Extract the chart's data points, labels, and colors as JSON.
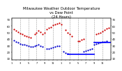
{
  "title": "Milwaukee Weather Outdoor Temperature\nvs Dew Point\n(24 Hours)",
  "title_fontsize": 3.8,
  "background_color": "#ffffff",
  "ylim": [
    8,
    72
  ],
  "xlim": [
    0,
    24
  ],
  "grid_x": [
    2,
    4,
    6,
    8,
    10,
    12,
    14,
    16,
    18,
    20,
    22
  ],
  "temp_x": [
    0.5,
    1.0,
    1.5,
    2.0,
    2.5,
    3.0,
    3.5,
    4.0,
    4.5,
    5.5,
    6.0,
    6.5,
    7.0,
    7.5,
    8.0,
    8.5,
    9.0,
    9.5,
    10.0,
    10.5,
    11.0,
    11.5,
    12.0,
    13.0,
    13.5,
    14.0,
    14.5,
    16.0,
    16.5,
    17.0,
    17.5,
    20.5,
    21.0,
    21.5,
    22.0,
    22.5,
    23.0,
    23.5
  ],
  "temp_y": [
    55,
    53,
    51,
    49,
    47,
    45,
    44,
    43,
    42,
    47,
    50,
    53,
    51,
    47,
    50,
    55,
    57,
    58,
    61,
    62,
    64,
    65,
    63,
    54,
    50,
    47,
    44,
    37,
    37,
    39,
    40,
    47,
    49,
    50,
    52,
    54,
    56,
    57
  ],
  "dew_x": [
    0.5,
    1.0,
    1.5,
    2.0,
    2.5,
    3.0,
    3.5,
    4.0,
    4.5,
    5.0,
    5.5,
    6.0,
    6.5,
    7.0,
    7.5,
    8.5,
    9.0,
    9.5,
    10.0,
    10.5,
    11.0,
    11.5,
    12.5,
    13.0,
    13.5,
    17.5,
    18.0,
    18.5,
    19.0,
    19.5,
    20.0,
    20.5,
    21.0,
    21.5,
    22.0,
    22.5,
    23.0
  ],
  "dew_y": [
    38,
    36,
    35,
    33,
    32,
    31,
    30,
    29,
    28,
    28,
    29,
    30,
    31,
    29,
    28,
    25,
    25,
    26,
    27,
    28,
    29,
    29,
    21,
    19,
    18,
    21,
    22,
    23,
    24,
    25,
    32,
    33,
    34,
    35,
    36,
    36,
    37
  ],
  "hline_x1": 13.5,
  "hline_x2": 20.0,
  "hline_y": 17,
  "hline2_x1": 20.0,
  "hline2_x2": 24.0,
  "hline2_y": 35,
  "hline_color": "#0000ff",
  "hline_linewidth": 1.2,
  "temp_color": "#cc0000",
  "dew_color": "#0000cc",
  "dot_size": 2.5,
  "grid_color": "#999999",
  "grid_linestyle": "--",
  "grid_linewidth": 0.4,
  "tick_fontsize": 2.8,
  "xtick_fontsize": 2.5,
  "ytick_vals": [
    10,
    20,
    30,
    40,
    50,
    60,
    70
  ],
  "xtick_positions": [
    0,
    1,
    2,
    3,
    4,
    5,
    6,
    7,
    8,
    9,
    10,
    11,
    12,
    13,
    14,
    15,
    16,
    17,
    18,
    19,
    20,
    21,
    22,
    23
  ],
  "xtick_labels": [
    "1",
    "",
    "3",
    "",
    "5",
    "",
    "7",
    "",
    "9",
    "",
    "11",
    "",
    "1",
    "",
    "3",
    "",
    "5",
    "",
    "7",
    "",
    "9",
    "",
    "11",
    ""
  ]
}
